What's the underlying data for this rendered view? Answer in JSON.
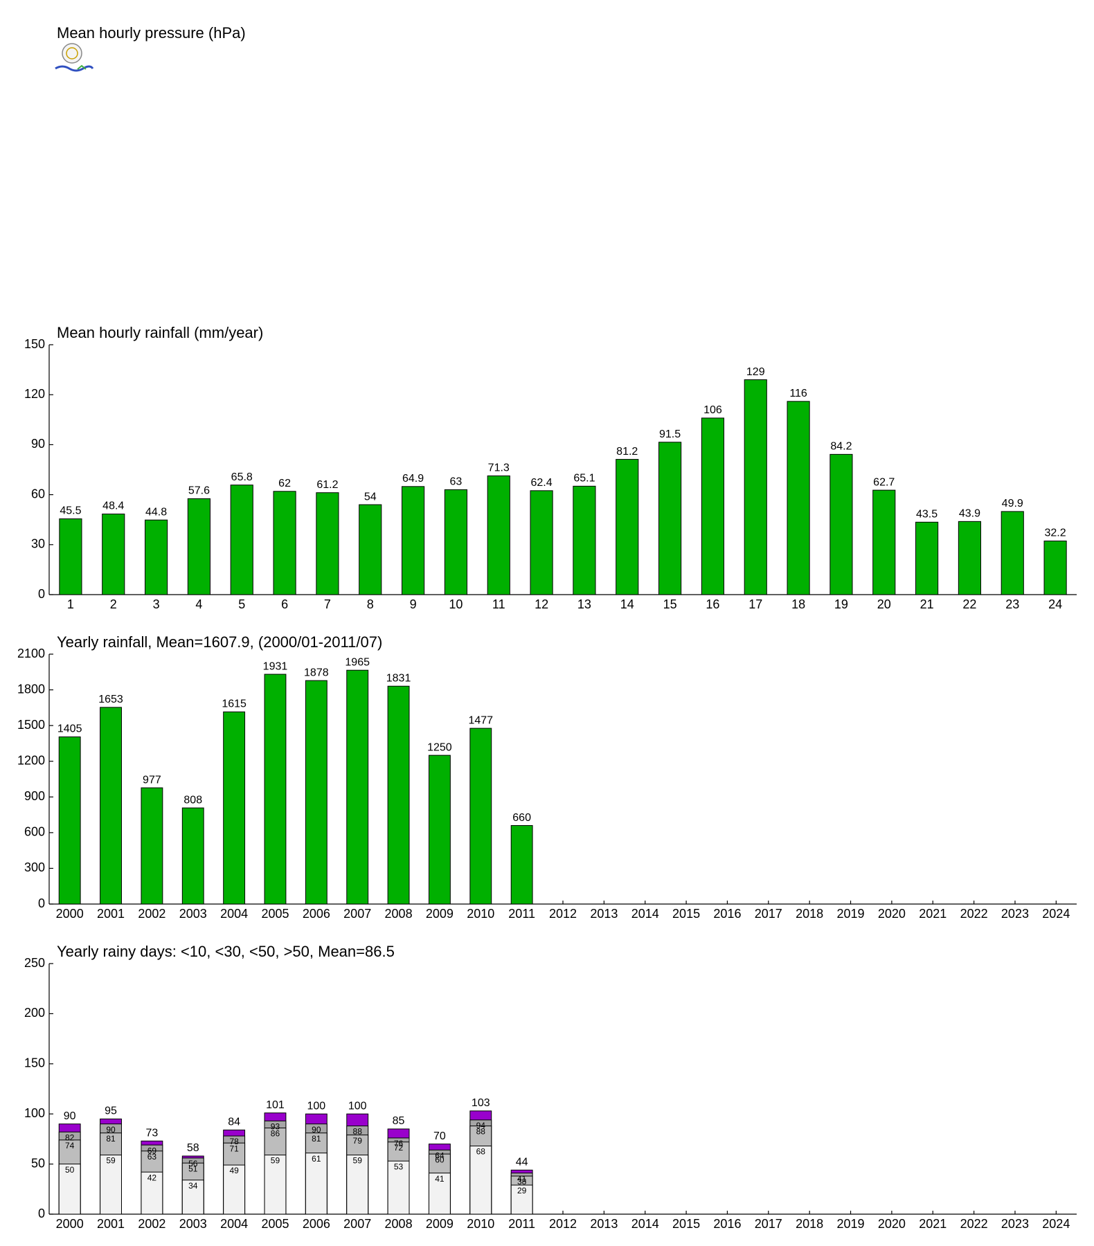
{
  "page_title": "Mean hourly pressure (hPa)",
  "chart_data": [
    {
      "type": "bar",
      "title": "Mean hourly rainfall (mm/year)",
      "categories": [
        "1",
        "2",
        "3",
        "4",
        "5",
        "6",
        "7",
        "8",
        "9",
        "10",
        "11",
        "12",
        "13",
        "14",
        "15",
        "16",
        "17",
        "18",
        "19",
        "20",
        "21",
        "22",
        "23",
        "24"
      ],
      "values": [
        45.5,
        48.4,
        44.8,
        57.6,
        65.8,
        62,
        61.2,
        54,
        64.9,
        63,
        71.3,
        62.4,
        65.1,
        81.2,
        91.5,
        106,
        129,
        116,
        84.2,
        62.7,
        43.5,
        43.9,
        49.9,
        32.2
      ],
      "color": "#00b000",
      "ylim": [
        0,
        150
      ],
      "yticks": [
        0,
        30,
        60,
        90,
        120,
        150
      ]
    },
    {
      "type": "bar",
      "title": "Yearly rainfall, Mean=1607.9, (2000/01-2011/07)",
      "categories": [
        "2000",
        "2001",
        "2002",
        "2003",
        "2004",
        "2005",
        "2006",
        "2007",
        "2008",
        "2009",
        "2010",
        "2011",
        "2012",
        "2013",
        "2014",
        "2015",
        "2016",
        "2017",
        "2018",
        "2019",
        "2020",
        "2021",
        "2022",
        "2023",
        "2024"
      ],
      "values": [
        1405,
        1653,
        977,
        808,
        1615,
        1931,
        1878,
        1965,
        1831,
        1250,
        1477,
        660,
        null,
        null,
        null,
        null,
        null,
        null,
        null,
        null,
        null,
        null,
        null,
        null,
        null
      ],
      "color": "#00b000",
      "ylim": [
        0,
        2100
      ],
      "yticks": [
        0,
        300,
        600,
        900,
        1200,
        1500,
        1800,
        2100
      ]
    },
    {
      "type": "overlap",
      "title": "Yearly rainy days: <10, <30, <50, >50, Mean=86.5",
      "categories": [
        "2000",
        "2001",
        "2002",
        "2003",
        "2004",
        "2005",
        "2006",
        "2007",
        "2008",
        "2009",
        "2010",
        "2011",
        "2012",
        "2013",
        "2014",
        "2015",
        "2016",
        "2017",
        "2018",
        "2019",
        "2020",
        "2021",
        "2022",
        "2023",
        "2024"
      ],
      "series": [
        {
          "color": "#f2f2f2",
          "values": [
            50,
            59,
            42,
            34,
            49,
            59,
            61,
            59,
            53,
            41,
            68,
            29,
            null,
            null,
            null,
            null,
            null,
            null,
            null,
            null,
            null,
            null,
            null,
            null,
            null
          ]
        },
        {
          "color": "#bdbdbd",
          "values": [
            74,
            81,
            63,
            51,
            71,
            86,
            81,
            79,
            72,
            60,
            88,
            38,
            null,
            null,
            null,
            null,
            null,
            null,
            null,
            null,
            null,
            null,
            null,
            null,
            null
          ]
        },
        {
          "color": "#a6a6a6",
          "values": [
            82,
            90,
            69,
            56,
            78,
            93,
            90,
            88,
            76,
            64,
            94,
            41,
            null,
            null,
            null,
            null,
            null,
            null,
            null,
            null,
            null,
            null,
            null,
            null,
            null
          ]
        },
        {
          "color": "#9900cc",
          "values": [
            90,
            95,
            73,
            58,
            84,
            101,
            100,
            100,
            85,
            70,
            103,
            44,
            null,
            null,
            null,
            null,
            null,
            null,
            null,
            null,
            null,
            null,
            null,
            null,
            null
          ]
        }
      ],
      "ylim": [
        0,
        250
      ],
      "yticks": [
        0,
        50,
        100,
        150,
        200,
        250
      ]
    }
  ]
}
